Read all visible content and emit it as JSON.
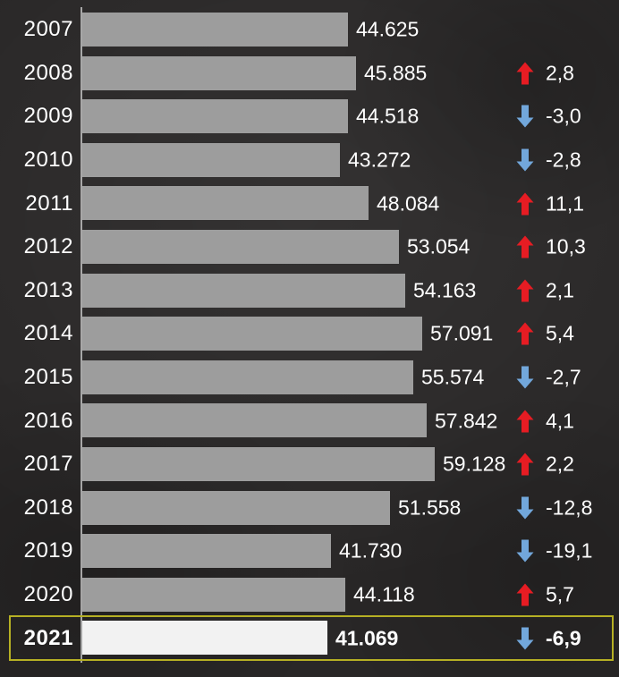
{
  "colors": {
    "background": "#292727",
    "bar": "#9d9d9d",
    "highlight_bar": "#f2f2f2",
    "axis_line": "#bdbdbd",
    "text": "#ffffff",
    "up_arrow": "#e61c23",
    "down_arrow": "#72a7db",
    "highlight_border": "#b6b024"
  },
  "icons": {
    "up": "up-arrow-icon",
    "down": "down-arrow-icon"
  },
  "chart_data": {
    "type": "bar",
    "orientation": "horizontal",
    "title": "",
    "xlabel": "",
    "ylabel": "",
    "xlim": [
      0,
      59128
    ],
    "grid": false,
    "legend": false,
    "value_format": "thousands with dot separator",
    "change_format": "percent with comma decimal",
    "highlighted_category": "2021",
    "categories": [
      "2007",
      "2008",
      "2009",
      "2010",
      "2011",
      "2012",
      "2013",
      "2014",
      "2015",
      "2016",
      "2017",
      "2018",
      "2019",
      "2020",
      "2021"
    ],
    "values": [
      44625,
      45885,
      44518,
      43272,
      48084,
      53054,
      54163,
      57091,
      55574,
      57842,
      59128,
      51558,
      41730,
      44118,
      41069
    ],
    "rows": [
      {
        "year": "2007",
        "value": 44625,
        "value_label": "44.625",
        "change": null,
        "direction": null,
        "highlight": false
      },
      {
        "year": "2008",
        "value": 45885,
        "value_label": "45.885",
        "change": "2,8",
        "direction": "up",
        "highlight": false
      },
      {
        "year": "2009",
        "value": 44518,
        "value_label": "44.518",
        "change": "-3,0",
        "direction": "down",
        "highlight": false
      },
      {
        "year": "2010",
        "value": 43272,
        "value_label": "43.272",
        "change": "-2,8",
        "direction": "down",
        "highlight": false
      },
      {
        "year": "2011",
        "value": 48084,
        "value_label": "48.084",
        "change": "11,1",
        "direction": "up",
        "highlight": false
      },
      {
        "year": "2012",
        "value": 53054,
        "value_label": "53.054",
        "change": "10,3",
        "direction": "up",
        "highlight": false
      },
      {
        "year": "2013",
        "value": 54163,
        "value_label": "54.163",
        "change": "2,1",
        "direction": "up",
        "highlight": false
      },
      {
        "year": "2014",
        "value": 57091,
        "value_label": "57.091",
        "change": "5,4",
        "direction": "up",
        "highlight": false
      },
      {
        "year": "2015",
        "value": 55574,
        "value_label": "55.574",
        "change": "-2,7",
        "direction": "down",
        "highlight": false
      },
      {
        "year": "2016",
        "value": 57842,
        "value_label": "57.842",
        "change": "4,1",
        "direction": "up",
        "highlight": false
      },
      {
        "year": "2017",
        "value": 59128,
        "value_label": "59.128",
        "change": "2,2",
        "direction": "up",
        "highlight": false
      },
      {
        "year": "2018",
        "value": 51558,
        "value_label": "51.558",
        "change": "-12,8",
        "direction": "down",
        "highlight": false
      },
      {
        "year": "2019",
        "value": 41730,
        "value_label": "41.730",
        "change": "-19,1",
        "direction": "down",
        "highlight": false
      },
      {
        "year": "2020",
        "value": 44118,
        "value_label": "44.118",
        "change": "5,7",
        "direction": "up",
        "highlight": false
      },
      {
        "year": "2021",
        "value": 41069,
        "value_label": "41.069",
        "change": "-6,9",
        "direction": "down",
        "highlight": true
      }
    ]
  }
}
